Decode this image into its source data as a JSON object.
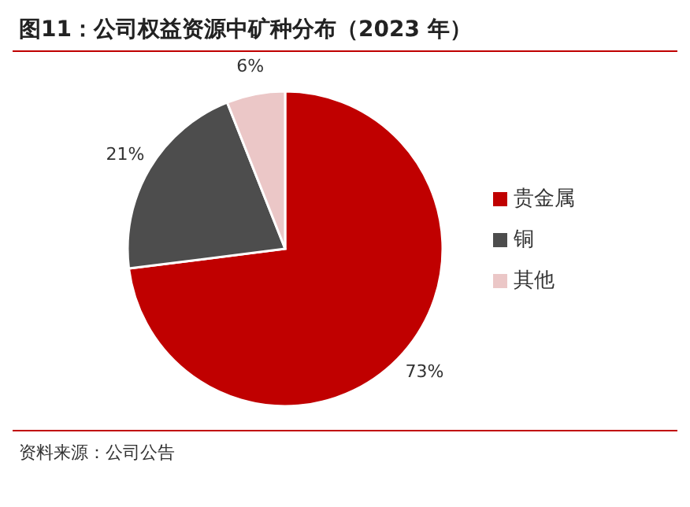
{
  "chart_data": {
    "type": "pie",
    "title": "图11：公司权益资源中矿种分布（2023 年）",
    "categories": [
      "贵金属",
      "铜",
      "其他"
    ],
    "values": [
      73,
      21,
      6
    ],
    "value_labels": [
      "73%",
      "21%",
      "6%"
    ],
    "colors": [
      "#c00000",
      "#4d4d4d",
      "#ebc7c7"
    ],
    "legend": "right",
    "annotations": [
      "资料来源：公司公告"
    ]
  }
}
